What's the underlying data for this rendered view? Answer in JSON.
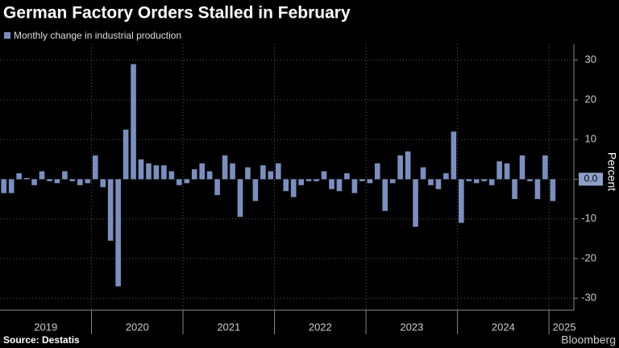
{
  "chart_data": {
    "type": "bar",
    "title": "German Factory Orders Stalled in February",
    "legend": "Monthly change in industrial production",
    "y_label": "Percent",
    "source": "Source: Destatis",
    "brand": "Bloomberg",
    "color": "#7b8fbf",
    "ylim": [
      -33,
      34
    ],
    "yticks": [
      -30,
      -20,
      -10,
      0,
      10,
      20,
      30
    ],
    "grid": true,
    "years": [
      {
        "label": "2019",
        "values": [
          -3.5,
          -3.5,
          1.5,
          0.3,
          -1.5,
          2,
          -0.5,
          -1,
          2,
          -0.5,
          -1.5,
          -1
        ]
      },
      {
        "label": "2020",
        "values": [
          6,
          -2,
          -15.5,
          -27,
          12.5,
          29,
          5,
          4,
          3.5,
          3.5,
          2,
          -1.5
        ]
      },
      {
        "label": "2021",
        "values": [
          -1,
          2.5,
          4,
          2,
          -4,
          6,
          4,
          -9.5,
          3,
          -5.5,
          3.5,
          2
        ]
      },
      {
        "label": "2022",
        "values": [
          4,
          -3,
          -4.5,
          -1.5,
          -0.5,
          -0.5,
          2,
          -2.5,
          -3,
          1.5,
          -3.5,
          -0.5
        ]
      },
      {
        "label": "2023",
        "values": [
          -1,
          4,
          -8,
          -1,
          6,
          7,
          -12,
          3,
          -1.5,
          -2.5,
          1.5,
          12
        ]
      },
      {
        "label": "2024",
        "values": [
          -11,
          -0.5,
          -1,
          -0.5,
          -1.5,
          4.5,
          4,
          -5,
          6,
          -0.5,
          -5,
          6
        ]
      },
      {
        "label": "2025",
        "values": [
          -5.5,
          0
        ]
      }
    ],
    "annotation": {
      "value": 0,
      "label": "0.0"
    }
  }
}
